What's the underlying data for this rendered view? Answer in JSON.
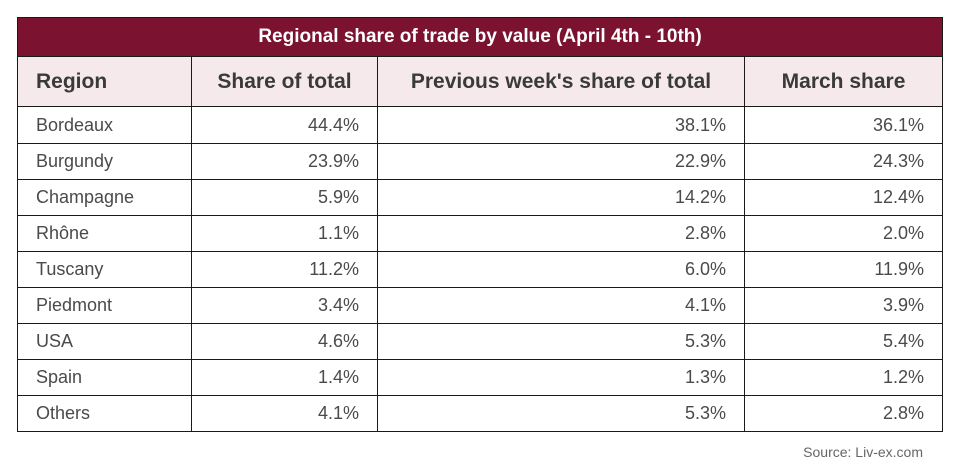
{
  "table": {
    "title": "Regional share of trade by value (April 4th - 10th)",
    "headers": [
      "Region",
      "Share of total",
      "Previous week's share of total",
      "March share"
    ],
    "rows": [
      {
        "region": "Bordeaux",
        "share": "44.4%",
        "prev": "38.1%",
        "march": "36.1%"
      },
      {
        "region": "Burgundy",
        "share": "23.9%",
        "prev": "22.9%",
        "march": "24.3%"
      },
      {
        "region": "Champagne",
        "share": "5.9%",
        "prev": "14.2%",
        "march": "12.4%"
      },
      {
        "region": "Rhône",
        "share": "1.1%",
        "prev": "2.8%",
        "march": "2.0%"
      },
      {
        "region": "Tuscany",
        "share": "11.2%",
        "prev": "6.0%",
        "march": "11.9%"
      },
      {
        "region": "Piedmont",
        "share": "3.4%",
        "prev": "4.1%",
        "march": "3.9%"
      },
      {
        "region": "USA",
        "share": "4.6%",
        "prev": "5.3%",
        "march": "5.4%"
      },
      {
        "region": "Spain",
        "share": "1.4%",
        "prev": "1.3%",
        "march": "1.2%"
      },
      {
        "region": "Others",
        "share": "4.1%",
        "prev": "5.3%",
        "march": "2.8%"
      }
    ]
  },
  "source": "Source: Liv-ex.com",
  "colors": {
    "title_bg": "#7a1230",
    "header_bg": "#f5e9ec"
  }
}
